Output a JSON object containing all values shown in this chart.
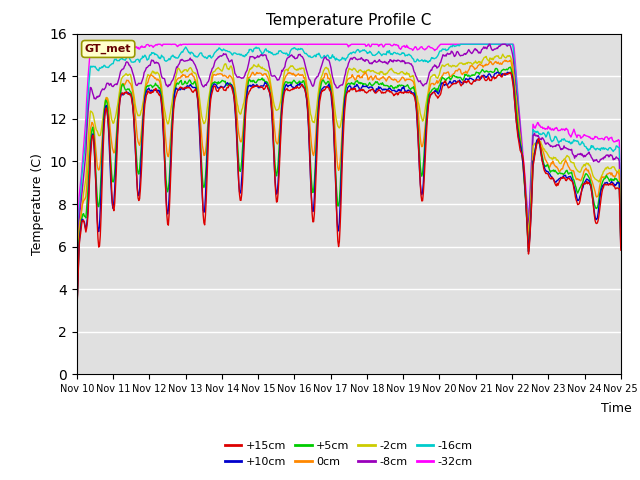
{
  "title": "Temperature Profile C",
  "xlabel": "Time",
  "ylabel": "Temperature (C)",
  "ylim": [
    0,
    16
  ],
  "yticks": [
    0,
    2,
    4,
    6,
    8,
    10,
    12,
    14,
    16
  ],
  "xlim": [
    0,
    15
  ],
  "bg_color": "#e0e0e0",
  "grid_color": "white",
  "legend_labels": [
    "+15cm",
    "+10cm",
    "+5cm",
    "0cm",
    "-2cm",
    "-8cm",
    "-16cm",
    "-32cm"
  ],
  "legend_colors": [
    "#dd0000",
    "#0000cc",
    "#00cc00",
    "#ff8800",
    "#cccc00",
    "#9900bb",
    "#00cccc",
    "#ff00ff"
  ],
  "gt_met_box_color": "#ffffcc",
  "gt_met_text_color": "#660000",
  "gt_met_border_color": "#999900",
  "n_points": 720,
  "x_tick_labels": [
    "Nov 10",
    "Nov 11",
    "Nov 12",
    "Nov 13",
    "Nov 14",
    "Nov 15",
    "Nov 16",
    "Nov 17",
    "Nov 18",
    "Nov 19",
    "Nov 20",
    "Nov 21",
    "Nov 22",
    "Nov 23",
    "Nov 24",
    "Nov 25"
  ]
}
